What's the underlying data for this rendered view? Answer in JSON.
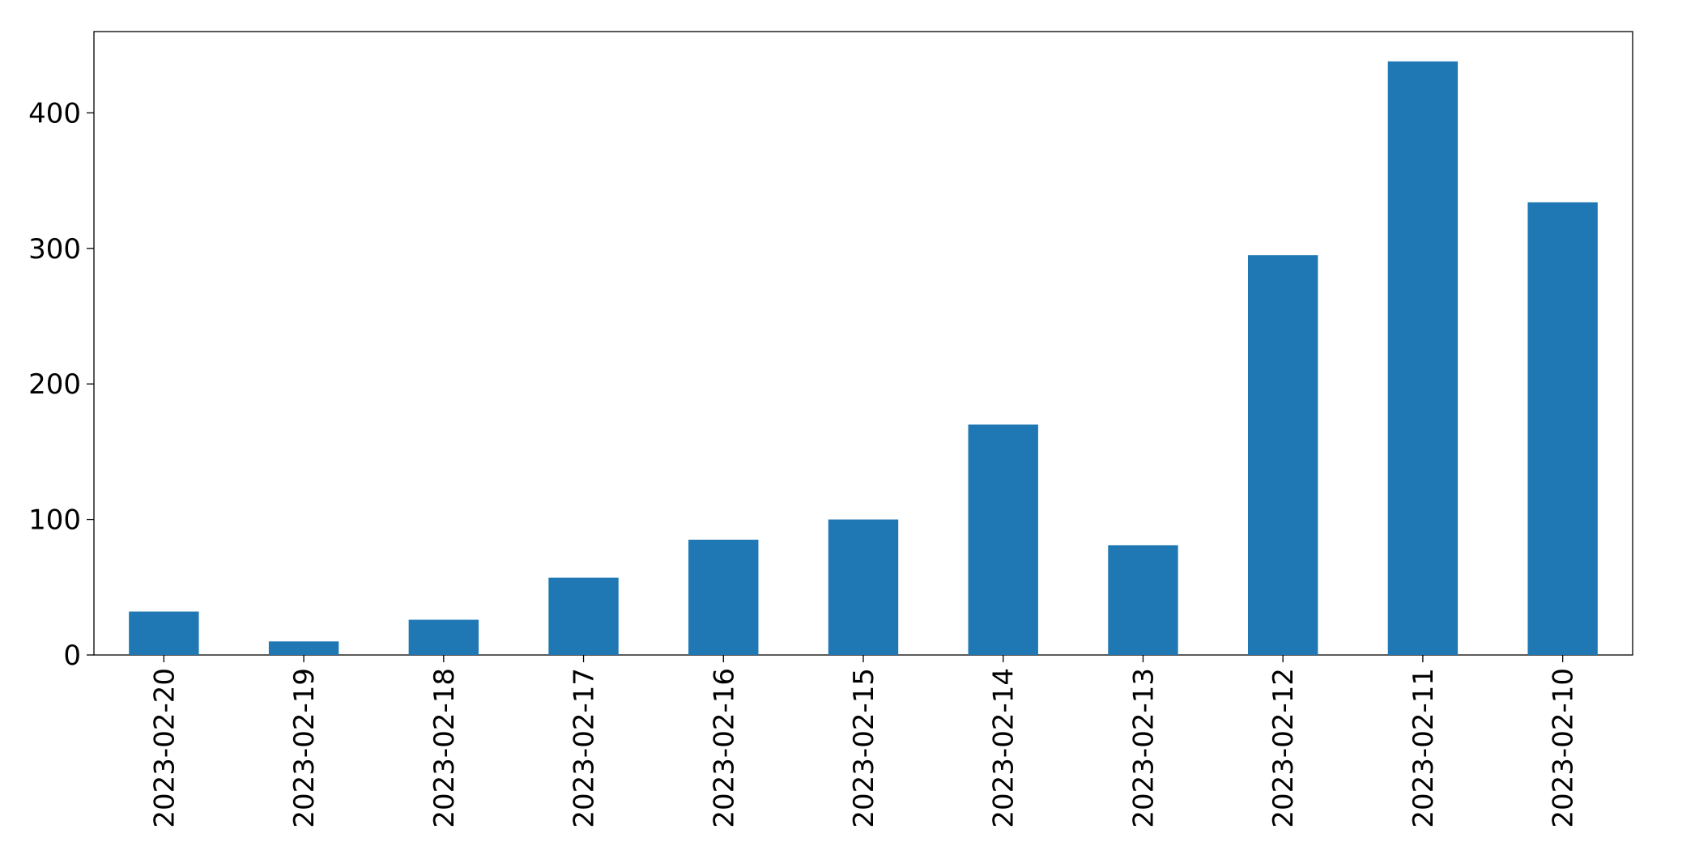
{
  "chart_data": {
    "type": "bar",
    "categories": [
      "2023-02-20",
      "2023-02-19",
      "2023-02-18",
      "2023-02-17",
      "2023-02-16",
      "2023-02-15",
      "2023-02-14",
      "2023-02-13",
      "2023-02-12",
      "2023-02-11",
      "2023-02-10"
    ],
    "values": [
      32,
      10,
      26,
      57,
      85,
      100,
      170,
      81,
      295,
      438,
      334
    ],
    "color": "#1f77b4",
    "ylim": [
      0,
      460
    ],
    "yticks": [
      0,
      100,
      200,
      300,
      400
    ],
    "grid": false
  }
}
